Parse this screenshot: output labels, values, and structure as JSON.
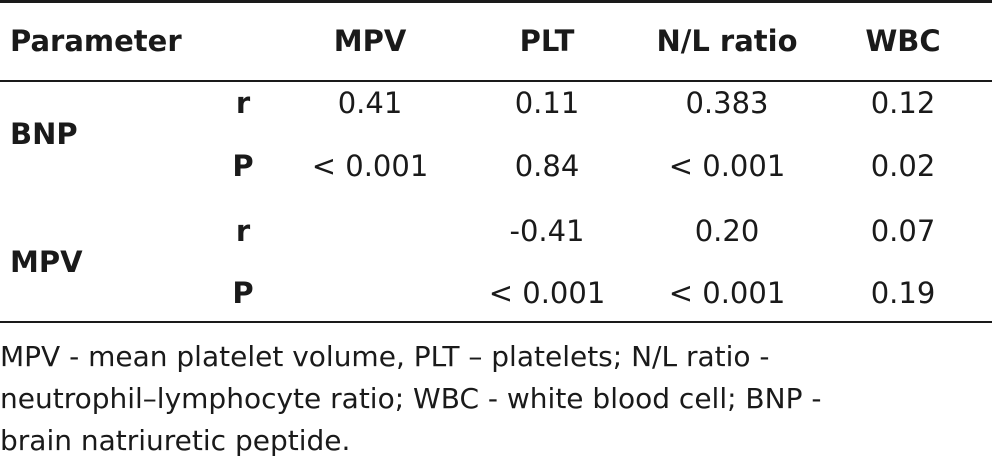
{
  "table": {
    "headers": {
      "parameter": "Parameter",
      "mpv": "MPV",
      "plt": "PLT",
      "nl_ratio": "N/L ratio",
      "wbc": "WBC"
    },
    "groups": [
      {
        "label": "BNP",
        "rows": [
          {
            "stat": "r",
            "mpv": "0.41",
            "plt": "0.11",
            "nl_ratio": "0.383",
            "wbc": "0.12"
          },
          {
            "stat": "P",
            "mpv": "< 0.001",
            "plt": "0.84",
            "nl_ratio": "< 0.001",
            "wbc": "0.02"
          }
        ]
      },
      {
        "label": "MPV",
        "rows": [
          {
            "stat": "r",
            "mpv": "",
            "plt": "-0.41",
            "nl_ratio": "0.20",
            "wbc": "0.07"
          },
          {
            "stat": "P",
            "mpv": "",
            "plt": "< 0.001",
            "nl_ratio": "< 0.001",
            "wbc": "0.19"
          }
        ]
      }
    ]
  },
  "footnote": {
    "line1": "MPV - mean platelet volume, PLT – platelets; N/L ratio -",
    "line2": "neutrophil–lymphocyte ratio; WBC - white blood cell; BNP -",
    "line3": "brain natriuretic peptide."
  }
}
